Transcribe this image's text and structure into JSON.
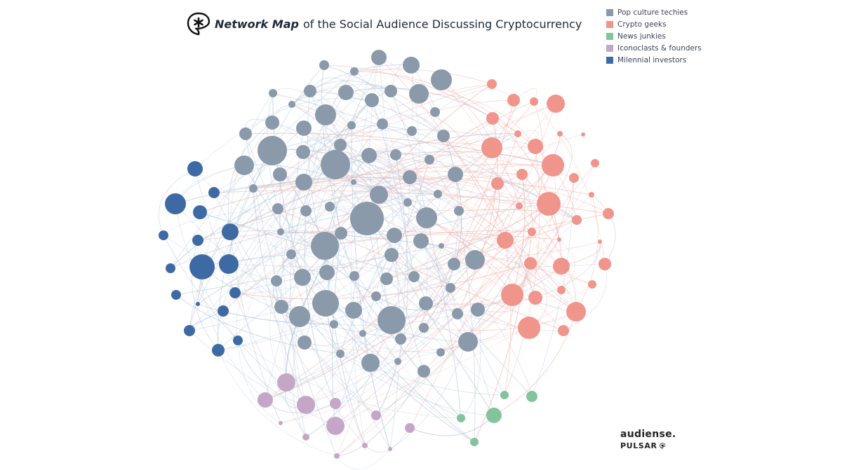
{
  "title": {
    "emphasis": "Network Map",
    "rest": "of the Social Audience Discussing Cryptocurrency",
    "logo_icon": "pulsar-asterisk-logo-icon"
  },
  "legend": [
    {
      "label": "Pop culture techies",
      "color": "#8a9aab"
    },
    {
      "label": "Crypto geeks",
      "color": "#f0958b"
    },
    {
      "label": "News junkies",
      "color": "#84c49c"
    },
    {
      "label": "Iconoclasts & founders",
      "color": "#c4a7c6"
    },
    {
      "label": "Milennial investors",
      "color": "#3e6aa4"
    }
  ],
  "branding": {
    "line1": "audiense.",
    "line2": "PULSAR",
    "pulsar_icon": "pulsar-asterisk-icon"
  },
  "edge_colors": {
    "blue": "#b9c8dc",
    "red": "#f4b6b0"
  }
}
